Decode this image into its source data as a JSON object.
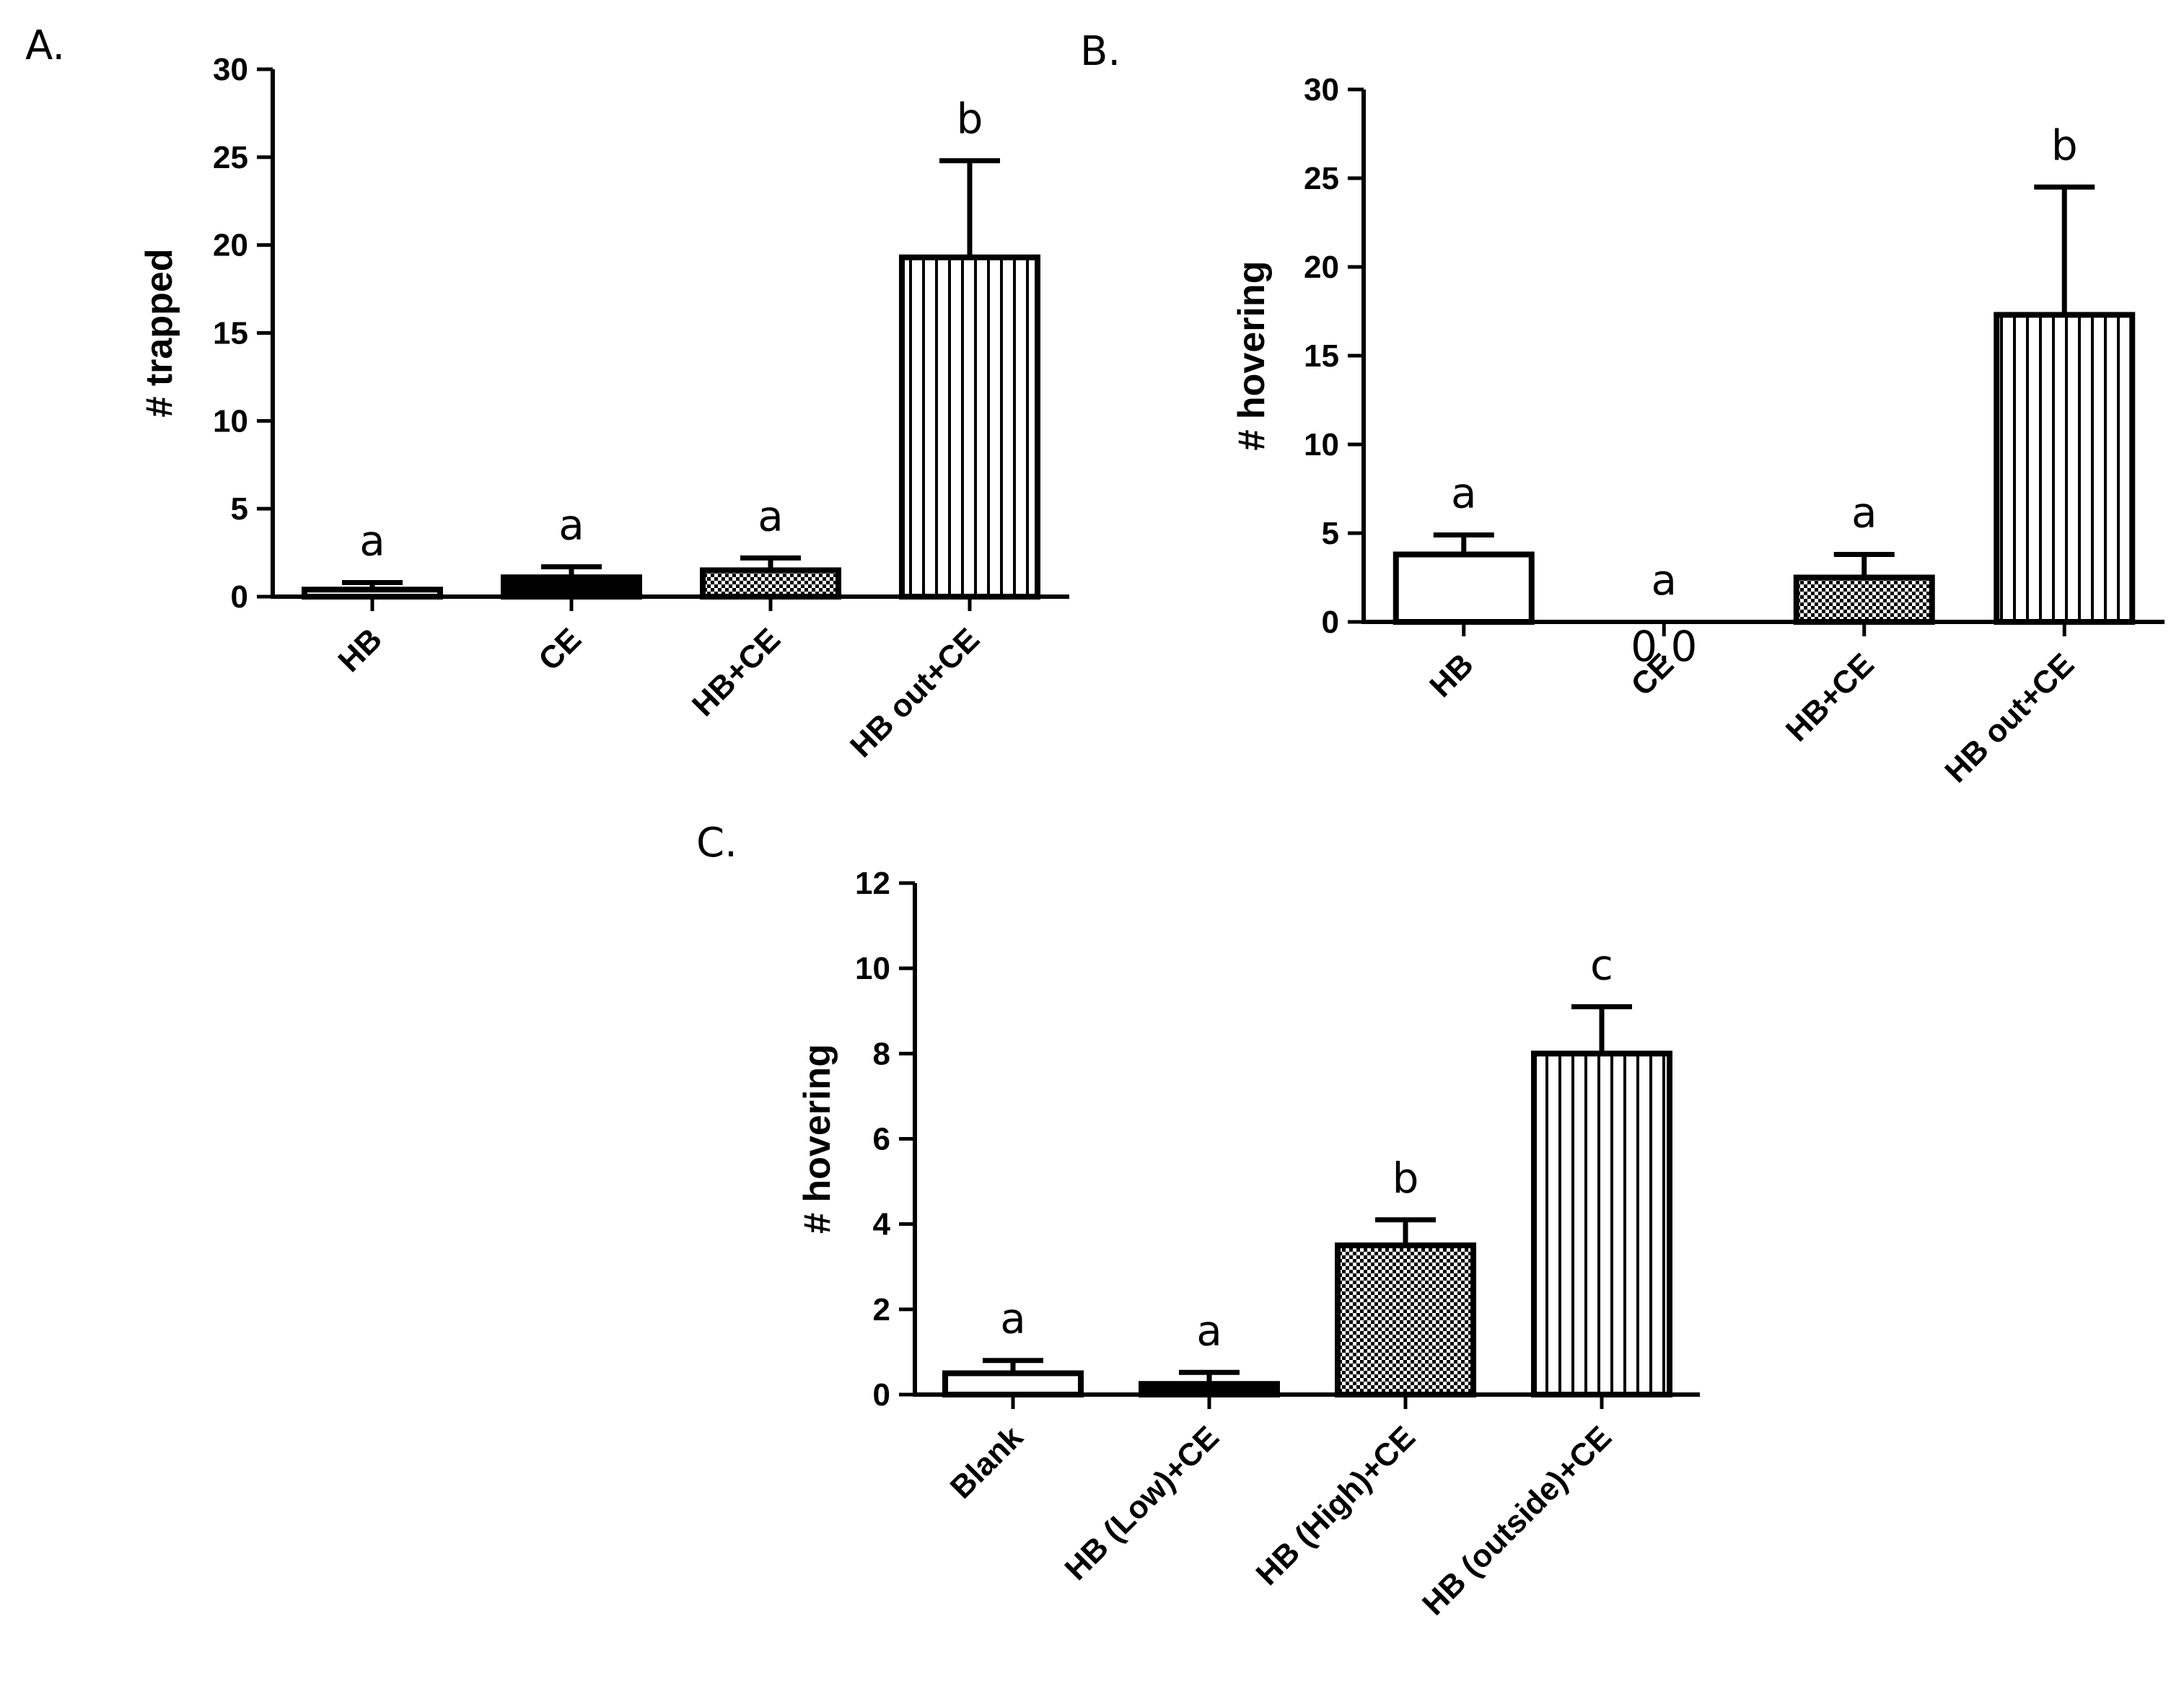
{
  "chart_data": [
    {
      "type": "bar",
      "panel_label": "A.",
      "ylabel": "# trapped",
      "ylim": [
        0,
        30
      ],
      "yticks": [
        0,
        5,
        10,
        15,
        20,
        25,
        30
      ],
      "categories": [
        "HB",
        "CE",
        "HB+CE",
        "HB out+CE"
      ],
      "values": [
        0.4,
        1.1,
        1.5,
        19.3
      ],
      "errors": [
        0.4,
        0.6,
        0.7,
        5.5
      ],
      "letters": [
        "a",
        "a",
        "a",
        "b"
      ],
      "fills": [
        "white",
        "black",
        "dots",
        "vstripes"
      ]
    },
    {
      "type": "bar",
      "panel_label": "B.",
      "ylabel": "# hovering",
      "ylim": [
        0,
        30
      ],
      "yticks": [
        0,
        5,
        10,
        15,
        20,
        25,
        30
      ],
      "categories": [
        "HB",
        "CE",
        "HB+CE",
        "HB out+CE"
      ],
      "values": [
        3.8,
        0.0,
        2.5,
        17.3
      ],
      "errors": [
        1.1,
        0.0,
        1.3,
        7.2
      ],
      "letters": [
        "a",
        "a",
        "a",
        "b"
      ],
      "value_labels": [
        "",
        "0.0",
        "",
        ""
      ],
      "fills": [
        "white",
        "white",
        "dots",
        "vstripes"
      ]
    },
    {
      "type": "bar",
      "panel_label": "C.",
      "ylabel": "# hovering",
      "ylim": [
        0,
        12
      ],
      "yticks": [
        0,
        2,
        4,
        6,
        8,
        10,
        12
      ],
      "categories": [
        "Blank",
        "HB (Low)+CE",
        "HB (High)+CE",
        "HB (outside)+CE"
      ],
      "values": [
        0.5,
        0.25,
        3.5,
        8.0
      ],
      "errors": [
        0.3,
        0.27,
        0.6,
        1.1
      ],
      "letters": [
        "a",
        "a",
        "b",
        "c"
      ],
      "fills": [
        "white",
        "black",
        "dots",
        "vstripes"
      ]
    }
  ]
}
